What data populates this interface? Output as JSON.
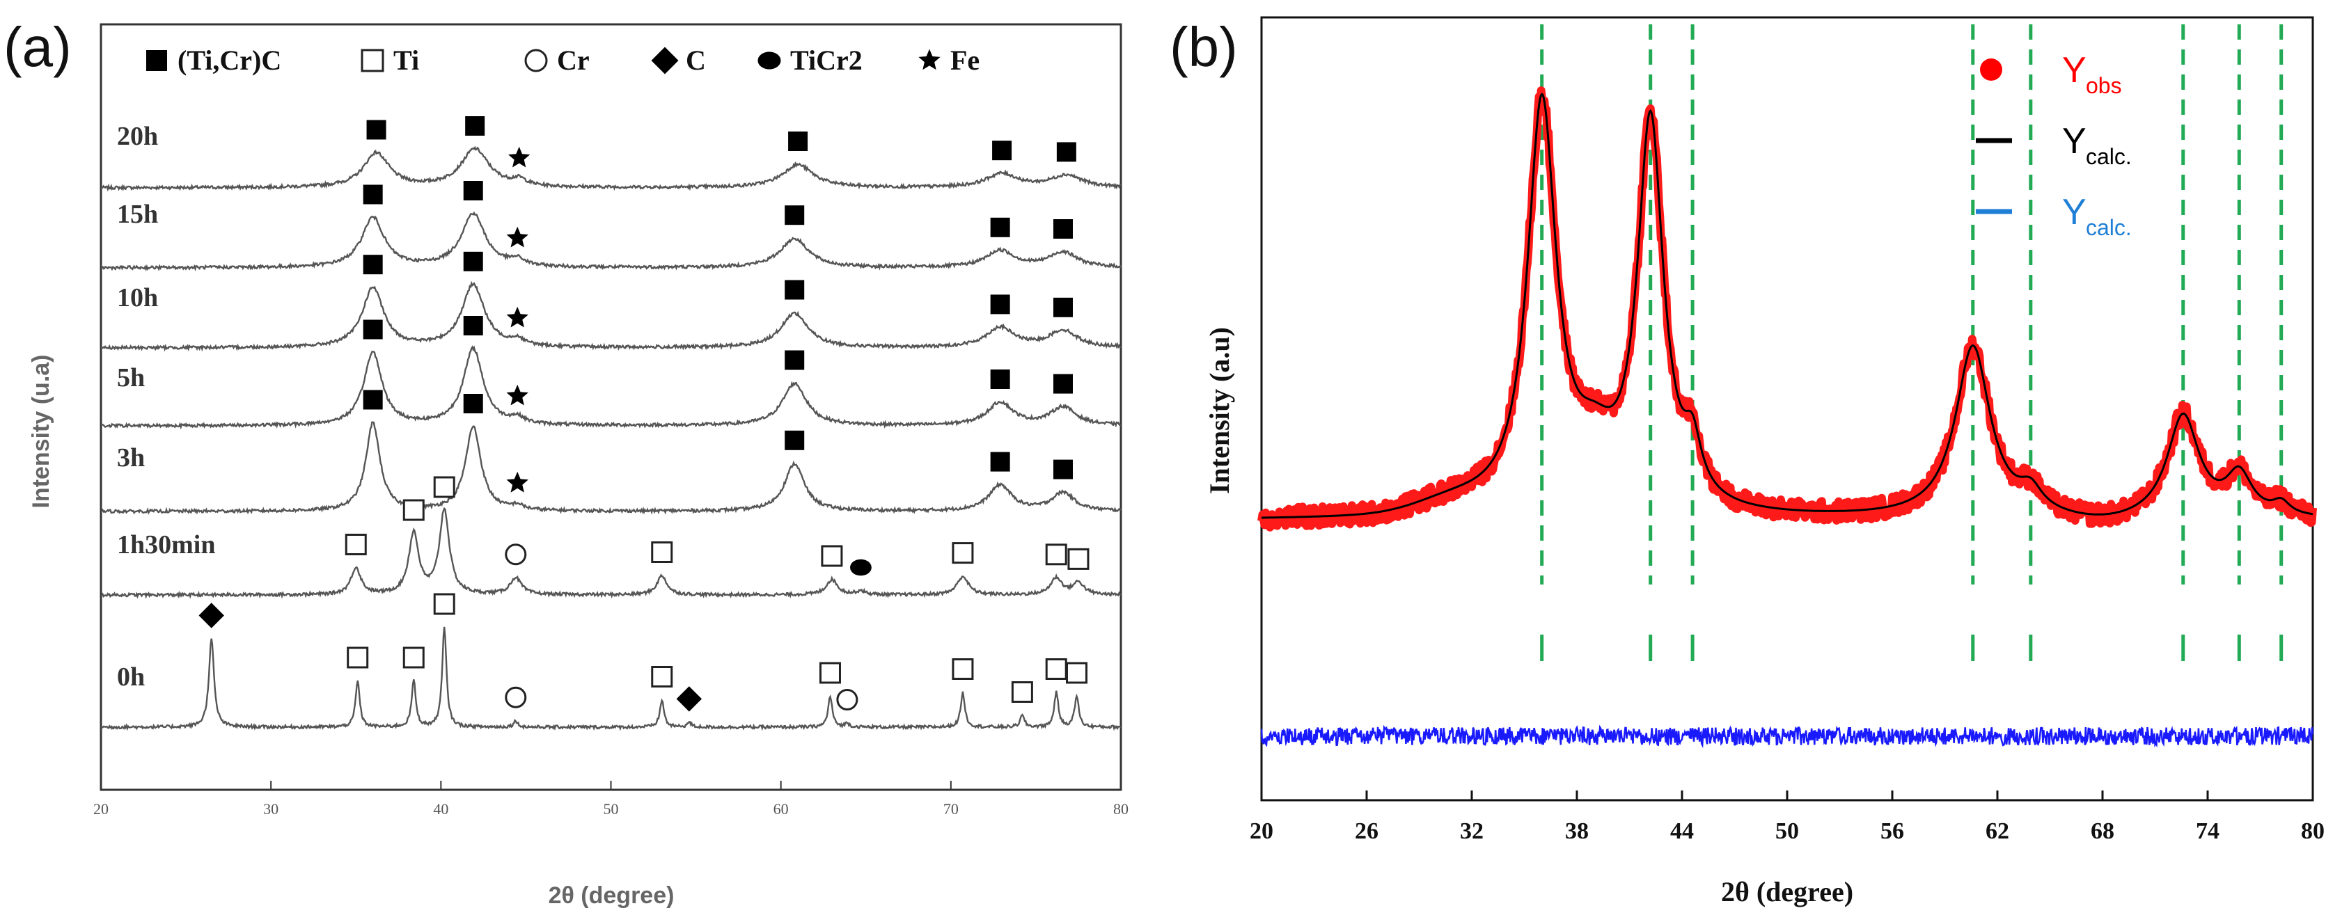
{
  "chart_data": [
    {
      "panel_label": "(a)",
      "type": "line",
      "xlabel": "2θ (degree)",
      "ylabel": "Intensity (u.a)",
      "xlim": [
        20,
        80
      ],
      "xticks": [
        "20",
        "30",
        "40",
        "50",
        "60",
        "70",
        "80"
      ],
      "legend": [
        {
          "symbol": "filled-square",
          "label": "(Ti,Cr)C"
        },
        {
          "symbol": "open-square",
          "label": "Ti"
        },
        {
          "symbol": "open-circle",
          "label": "Cr"
        },
        {
          "symbol": "filled-diamond",
          "label": "C"
        },
        {
          "symbol": "filled-ellipse",
          "label": "TiCr2"
        },
        {
          "symbol": "star",
          "label": "Fe"
        }
      ],
      "series": [
        {
          "name": "20h",
          "peaks": [
            {
              "x": 36.2,
              "h": 0.45,
              "w": 0.9,
              "m": "filled-square"
            },
            {
              "x": 42.0,
              "h": 0.5,
              "w": 1.0,
              "m": "filled-square"
            },
            {
              "x": 44.6,
              "h": 0.08,
              "w": 0.5,
              "m": "star"
            },
            {
              "x": 61.0,
              "h": 0.3,
              "w": 1.1,
              "m": "filled-square"
            },
            {
              "x": 73.0,
              "h": 0.18,
              "w": 1.1,
              "m": "filled-square"
            },
            {
              "x": 76.8,
              "h": 0.16,
              "w": 1.1,
              "m": "filled-square"
            }
          ]
        },
        {
          "name": "15h",
          "peaks": [
            {
              "x": 36.0,
              "h": 0.65,
              "w": 0.8,
              "m": "filled-square"
            },
            {
              "x": 41.9,
              "h": 0.7,
              "w": 0.85,
              "m": "filled-square"
            },
            {
              "x": 44.5,
              "h": 0.08,
              "w": 0.5,
              "m": "star"
            },
            {
              "x": 60.8,
              "h": 0.38,
              "w": 1.0,
              "m": "filled-square"
            },
            {
              "x": 72.9,
              "h": 0.22,
              "w": 1.0,
              "m": "filled-square"
            },
            {
              "x": 76.6,
              "h": 0.2,
              "w": 1.0,
              "m": "filled-square"
            }
          ]
        },
        {
          "name": "10h",
          "peaks": [
            {
              "x": 36.0,
              "h": 0.78,
              "w": 0.75,
              "m": "filled-square"
            },
            {
              "x": 41.9,
              "h": 0.82,
              "w": 0.8,
              "m": "filled-square"
            },
            {
              "x": 44.5,
              "h": 0.08,
              "w": 0.5,
              "m": "star"
            },
            {
              "x": 60.8,
              "h": 0.45,
              "w": 0.95,
              "m": "filled-square"
            },
            {
              "x": 72.9,
              "h": 0.26,
              "w": 1.0,
              "m": "filled-square"
            },
            {
              "x": 76.6,
              "h": 0.22,
              "w": 1.0,
              "m": "filled-square"
            }
          ]
        },
        {
          "name": "5h",
          "peaks": [
            {
              "x": 36.0,
              "h": 0.95,
              "w": 0.65,
              "m": "filled-square"
            },
            {
              "x": 41.9,
              "h": 1.0,
              "w": 0.7,
              "m": "filled-square"
            },
            {
              "x": 44.5,
              "h": 0.08,
              "w": 0.5,
              "m": "star"
            },
            {
              "x": 60.8,
              "h": 0.55,
              "w": 0.85,
              "m": "filled-square"
            },
            {
              "x": 72.9,
              "h": 0.3,
              "w": 0.9,
              "m": "filled-square"
            },
            {
              "x": 76.6,
              "h": 0.24,
              "w": 0.9,
              "m": "filled-square"
            }
          ]
        },
        {
          "name": "3h",
          "peaks": [
            {
              "x": 36.0,
              "h": 1.15,
              "w": 0.5,
              "m": "filled-square"
            },
            {
              "x": 41.9,
              "h": 1.1,
              "w": 0.55,
              "m": "filled-square"
            },
            {
              "x": 44.5,
              "h": 0.06,
              "w": 0.4,
              "m": "star"
            },
            {
              "x": 60.8,
              "h": 0.62,
              "w": 0.7,
              "m": "filled-square"
            },
            {
              "x": 72.9,
              "h": 0.34,
              "w": 0.8,
              "m": "filled-square"
            },
            {
              "x": 76.6,
              "h": 0.24,
              "w": 0.8,
              "m": "filled-square"
            }
          ]
        },
        {
          "name": "1h30min",
          "peaks": [
            {
              "x": 35.0,
              "h": 0.35,
              "w": 0.35,
              "m": "open-square"
            },
            {
              "x": 38.4,
              "h": 0.8,
              "w": 0.35,
              "m": "open-square"
            },
            {
              "x": 40.2,
              "h": 1.1,
              "w": 0.35,
              "m": "open-square"
            },
            {
              "x": 44.4,
              "h": 0.22,
              "w": 0.4,
              "m": "open-circle"
            },
            {
              "x": 53.0,
              "h": 0.25,
              "w": 0.35,
              "m": "open-square"
            },
            {
              "x": 63.0,
              "h": 0.2,
              "w": 0.4,
              "m": "open-square"
            },
            {
              "x": 64.7,
              "h": 0.05,
              "w": 0.3,
              "m": "filled-ellipse"
            },
            {
              "x": 70.7,
              "h": 0.24,
              "w": 0.4,
              "m": "open-square"
            },
            {
              "x": 76.2,
              "h": 0.22,
              "w": 0.4,
              "m": "open-square"
            },
            {
              "x": 77.5,
              "h": 0.16,
              "w": 0.4,
              "m": "open-square"
            }
          ]
        },
        {
          "name": "0h",
          "peaks": [
            {
              "x": 26.5,
              "h": 1.15,
              "w": 0.18,
              "m": "filled-diamond"
            },
            {
              "x": 35.1,
              "h": 0.6,
              "w": 0.15,
              "m": "open-square"
            },
            {
              "x": 38.4,
              "h": 0.6,
              "w": 0.15,
              "m": "open-square"
            },
            {
              "x": 40.2,
              "h": 1.3,
              "w": 0.15,
              "m": "open-square"
            },
            {
              "x": 44.4,
              "h": 0.08,
              "w": 0.15,
              "m": "open-circle"
            },
            {
              "x": 53.0,
              "h": 0.35,
              "w": 0.15,
              "m": "open-square"
            },
            {
              "x": 54.6,
              "h": 0.06,
              "w": 0.15,
              "m": "filled-diamond"
            },
            {
              "x": 62.9,
              "h": 0.4,
              "w": 0.15,
              "m": "open-square"
            },
            {
              "x": 63.9,
              "h": 0.05,
              "w": 0.15,
              "m": "open-circle"
            },
            {
              "x": 70.7,
              "h": 0.45,
              "w": 0.15,
              "m": "open-square"
            },
            {
              "x": 74.2,
              "h": 0.15,
              "w": 0.15,
              "m": "open-square"
            },
            {
              "x": 76.2,
              "h": 0.45,
              "w": 0.15,
              "m": "open-square"
            },
            {
              "x": 77.4,
              "h": 0.4,
              "w": 0.15,
              "m": "open-square"
            }
          ]
        }
      ]
    },
    {
      "panel_label": "(b)",
      "type": "line",
      "xlabel": "2θ (degree)",
      "ylabel": "Intensity (a.u)",
      "xlim": [
        20,
        80
      ],
      "xticks": [
        "20",
        "26",
        "32",
        "38",
        "44",
        "50",
        "56",
        "62",
        "68",
        "74",
        "80"
      ],
      "legend": [
        {
          "label_main": "Y",
          "label_sub": "obs",
          "color": "#ff0000",
          "symbol": "dot"
        },
        {
          "label_main": "Y",
          "label_sub": "calc.",
          "color": "#000000",
          "symbol": "line"
        },
        {
          "label_main": "Y",
          "label_sub": "calc.",
          "color": "#1f7fd6",
          "symbol": "line"
        }
      ],
      "bragg_positions": [
        36.0,
        42.2,
        44.6,
        60.6,
        63.9,
        72.6,
        75.8,
        78.2
      ],
      "fit_peaks": [
        {
          "x": 36.0,
          "h": 1.0,
          "w": 1.0
        },
        {
          "x": 39.0,
          "h": 0.12,
          "w": 1.5
        },
        {
          "x": 42.2,
          "h": 0.95,
          "w": 0.9
        },
        {
          "x": 44.6,
          "h": 0.12,
          "w": 0.6
        },
        {
          "x": 60.6,
          "h": 0.42,
          "w": 1.2
        },
        {
          "x": 63.9,
          "h": 0.05,
          "w": 0.8
        },
        {
          "x": 72.6,
          "h": 0.25,
          "w": 1.1
        },
        {
          "x": 75.8,
          "h": 0.1,
          "w": 0.9
        },
        {
          "x": 78.2,
          "h": 0.03,
          "w": 0.6
        }
      ],
      "colors": {
        "observed": "#ff1a1a",
        "calculated": "#000000",
        "difference": "#1a1aff",
        "bragg": "#22aa55"
      }
    }
  ]
}
